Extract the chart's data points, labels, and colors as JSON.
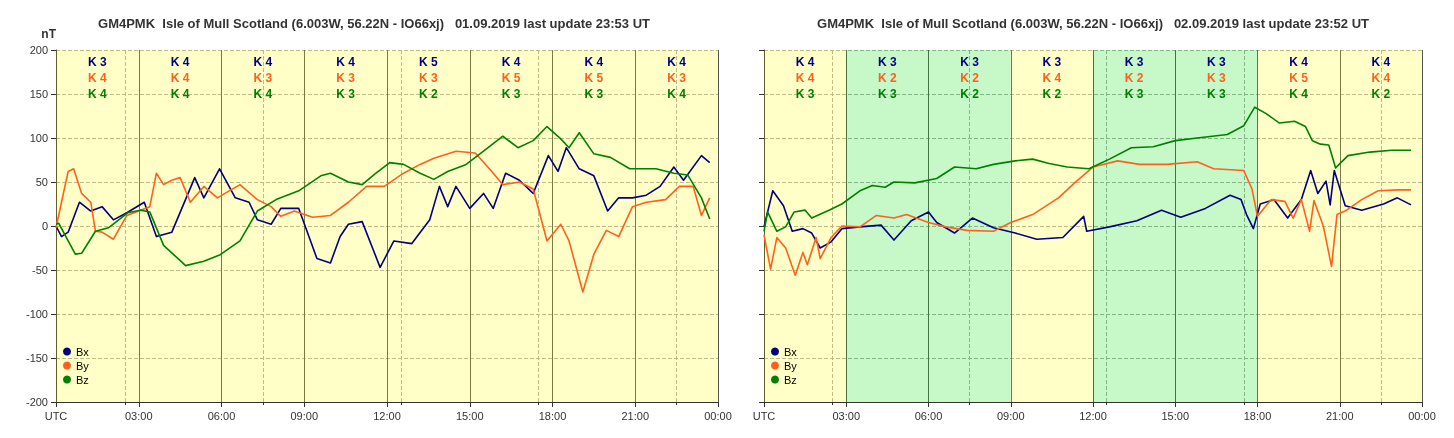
{
  "chart_data": [
    {
      "type": "line",
      "title": "GM4PMK  Isle of Mull Scotland (6.003W, 56.22N - IO66xj)   01.09.2019 last update 23:53 UT",
      "ylabel": "nT",
      "xlim": [
        0,
        24
      ],
      "xticks": [
        {
          "value": 0,
          "label": "UTC"
        },
        {
          "value": 3,
          "label": "03:00"
        },
        {
          "value": 6,
          "label": "06:00"
        },
        {
          "value": 9,
          "label": "09:00"
        },
        {
          "value": 12,
          "label": "12:00"
        },
        {
          "value": 15,
          "label": "15:00"
        },
        {
          "value": 18,
          "label": "18:00"
        },
        {
          "value": 21,
          "label": "21:00"
        },
        {
          "value": 24,
          "label": "00:00"
        }
      ],
      "ylim": [
        -200,
        200
      ],
      "yticks": [
        -200,
        -150,
        -100,
        -50,
        0,
        50,
        100,
        150,
        200
      ],
      "grid": true,
      "legend": "bottom left",
      "series": [
        {
          "name": "Bx",
          "color": "#000080",
          "x": [
            0,
            0.2,
            0.44,
            0.85,
            1.26,
            1.67,
            2.08,
            2.57,
            3.2,
            3.64,
            4.2,
            5.03,
            5.36,
            5.93,
            6.5,
            7.0,
            7.3,
            7.8,
            8.15,
            8.8,
            9.46,
            9.95,
            10.3,
            10.6,
            11.1,
            11.75,
            12.25,
            12.9,
            13.55,
            13.9,
            14.2,
            14.5,
            15.0,
            15.5,
            15.85,
            16.3,
            16.8,
            17.3,
            17.85,
            18.2,
            18.5,
            18.97,
            19.5,
            20.0,
            20.4,
            20.9,
            21.4,
            21.9,
            22.4,
            22.75,
            23.4,
            23.7
          ],
          "values": [
            0,
            -12,
            -7,
            27,
            17,
            22,
            7,
            15,
            27,
            -12,
            -7,
            55,
            32,
            65,
            32,
            27,
            7,
            2,
            20,
            20,
            -37,
            -42,
            -12,
            2,
            5,
            -47,
            -17,
            -20,
            7,
            45,
            22,
            45,
            20,
            37,
            20,
            60,
            52,
            37,
            80,
            62,
            89,
            65,
            57,
            17,
            32,
            32,
            35,
            45,
            67,
            52,
            80,
            72
          ]
        },
        {
          "name": "By",
          "color": "#ff6020",
          "x": [
            0,
            0.2,
            0.44,
            0.64,
            0.93,
            1.26,
            1.43,
            1.67,
            2.08,
            2.57,
            3.07,
            3.4,
            3.64,
            3.9,
            4.2,
            4.5,
            4.87,
            5.36,
            5.85,
            6.67,
            7.3,
            7.8,
            8.15,
            8.64,
            9.3,
            9.95,
            10.6,
            11.26,
            11.9,
            12.6,
            13.2,
            13.7,
            14.5,
            15.2,
            15.8,
            16.2,
            16.8,
            17.3,
            17.8,
            18.3,
            18.6,
            19.1,
            19.5,
            19.95,
            20.4,
            20.9,
            21.4,
            22.1,
            22.6,
            23.1,
            23.4,
            23.7
          ],
          "values": [
            -2,
            27,
            62,
            65,
            37,
            27,
            -6,
            -7,
            -15,
            12,
            18,
            22,
            60,
            47,
            52,
            55,
            27,
            45,
            32,
            47,
            30,
            22,
            11,
            17,
            10,
            12,
            27,
            45,
            45,
            60,
            70,
            77,
            85,
            83,
            62,
            47,
            50,
            42,
            -17,
            2,
            -17,
            -75,
            -32,
            -5,
            -12,
            22,
            27,
            30,
            45,
            45,
            12,
            32
          ]
        },
        {
          "name": "Bz",
          "color": "#008000",
          "x": [
            0,
            0.1,
            0.7,
            0.93,
            1.43,
            1.9,
            2.6,
            3.07,
            3.4,
            3.9,
            4.7,
            5.36,
            5.93,
            6.67,
            7.3,
            7.98,
            8.8,
            9.6,
            9.95,
            10.6,
            11.1,
            11.6,
            12.1,
            12.6,
            13.2,
            13.7,
            14.2,
            14.87,
            15.5,
            16.2,
            16.75,
            17.3,
            17.8,
            18.3,
            18.6,
            18.97,
            19.5,
            20.1,
            20.8,
            21.75,
            22.4,
            22.9,
            23.4,
            23.7
          ],
          "values": [
            2,
            3,
            -32,
            -31,
            -6,
            -2,
            15,
            18,
            16,
            -22,
            -45,
            -40,
            -33,
            -17,
            17,
            30,
            40,
            57,
            60,
            50,
            47,
            60,
            72,
            70,
            60,
            53,
            62,
            70,
            85,
            102,
            89,
            97,
            113,
            99,
            89,
            106,
            82,
            78,
            65,
            65,
            60,
            58,
            32,
            8
          ]
        }
      ],
      "bands": [
        {
          "axis": "x",
          "from": 0,
          "to": 24,
          "color": "#ffff00"
        }
      ],
      "annotations": [
        "K 3",
        "K 4",
        "K 4",
        "K 4",
        "K 5",
        "K 4",
        "K 4",
        "K 4",
        "K 4",
        "K 4",
        "K 3",
        "K 3",
        "K 3",
        "K 5",
        "K 5",
        "K 3",
        "K 4",
        "K 4",
        "K 4",
        "K 3",
        "K 2",
        "K 3",
        "K 3",
        "K 4"
      ]
    },
    {
      "type": "line",
      "title": "GM4PMK  Isle of Mull Scotland (6.003W, 56.22N - IO66xj)   02.09.2019 last update 23:52 UT",
      "xlim": [
        0,
        24
      ],
      "xticks": [
        {
          "value": 0,
          "label": "UTC"
        },
        {
          "value": 3,
          "label": "03:00"
        },
        {
          "value": 6,
          "label": "06:00"
        },
        {
          "value": 9,
          "label": "09:00"
        },
        {
          "value": 12,
          "label": "12:00"
        },
        {
          "value": 15,
          "label": "15:00"
        },
        {
          "value": 18,
          "label": "18:00"
        },
        {
          "value": 21,
          "label": "21:00"
        },
        {
          "value": 24,
          "label": "00:00"
        }
      ],
      "ylim": [
        -200,
        200
      ],
      "yticks": [
        -200,
        -150,
        -100,
        -50,
        0,
        50,
        100,
        150,
        200
      ],
      "tick_labels": "x",
      "grid": true,
      "legend": "bottom left",
      "series": [
        {
          "name": "Bx",
          "color": "#000080",
          "x": [
            0,
            0.32,
            0.71,
            1.03,
            1.42,
            1.74,
            2.05,
            2.45,
            2.84,
            3.5,
            4.27,
            4.74,
            5.37,
            6.0,
            6.3,
            6.95,
            7.6,
            8.37,
            9.16,
            9.95,
            10.9,
            11.66,
            11.77,
            12.6,
            13.6,
            14.5,
            15.2,
            16.1,
            17.0,
            17.4,
            17.6,
            17.85,
            18.1,
            18.6,
            19.1,
            19.6,
            19.94,
            20.2,
            20.5,
            20.65,
            20.8,
            21.2,
            21.8,
            22.6,
            23.1,
            23.6
          ],
          "values": [
            -1,
            40,
            23,
            -6,
            -3,
            -8,
            -25,
            -18,
            -3,
            -1,
            1,
            -16,
            6,
            16,
            4,
            -8,
            9,
            -2,
            -8,
            -15,
            -13,
            11,
            -6,
            -1,
            6,
            18,
            10,
            20,
            35,
            30,
            13,
            -3,
            25,
            30,
            9,
            30,
            63,
            37,
            51,
            24,
            63,
            23,
            18,
            25,
            32,
            24
          ]
        },
        {
          "name": "By",
          "color": "#ff6020",
          "x": [
            0,
            0.24,
            0.47,
            0.79,
            1.14,
            1.42,
            1.58,
            1.9,
            2.05,
            2.45,
            2.84,
            3.5,
            4.1,
            4.74,
            5.2,
            6.0,
            6.63,
            7.4,
            8.37,
            9.0,
            9.8,
            10.74,
            11.4,
            12.0,
            12.9,
            13.7,
            14.7,
            15.8,
            16.4,
            17.5,
            17.8,
            18.0,
            18.5,
            19.0,
            19.3,
            19.6,
            19.9,
            20.06,
            20.4,
            20.7,
            20.9,
            21.25,
            21.8,
            22.4,
            23.1,
            23.6
          ],
          "values": [
            -10,
            -49,
            -13,
            -25,
            -56,
            -30,
            -44,
            -13,
            -37,
            -13,
            0,
            -1,
            12,
            9,
            13,
            4,
            -1,
            -5,
            -6,
            4,
            13,
            32,
            51,
            67,
            74,
            70,
            70,
            73,
            65,
            63,
            42,
            11,
            30,
            28,
            9,
            30,
            -6,
            29,
            0,
            -46,
            13,
            18,
            30,
            40,
            41,
            41
          ]
        },
        {
          "name": "Bz",
          "color": "#008000",
          "x": [
            0,
            0.13,
            0.47,
            0.79,
            1.1,
            1.5,
            1.74,
            2.37,
            2.84,
            3.5,
            3.95,
            4.42,
            4.74,
            5.5,
            6.3,
            6.95,
            7.74,
            8.37,
            9.16,
            9.8,
            10.4,
            11.06,
            11.85,
            12.6,
            13.4,
            14.2,
            15.0,
            15.8,
            16.9,
            17.5,
            17.9,
            18.3,
            18.8,
            19.35,
            19.75,
            20.0,
            20.3,
            20.6,
            20.85,
            21.3,
            22.1,
            22.9,
            23.6
          ],
          "values": [
            -6,
            16,
            -6,
            -1,
            16,
            18,
            9,
            18,
            25,
            40,
            46,
            44,
            50,
            49,
            54,
            67,
            65,
            70,
            74,
            76,
            71,
            67,
            65,
            76,
            89,
            90,
            97,
            100,
            104,
            114,
            135,
            128,
            117,
            119,
            113,
            97,
            93,
            92,
            66,
            80,
            84,
            86,
            86
          ]
        }
      ],
      "bands": [
        {
          "axis": "x",
          "from": 0,
          "to": 3,
          "color": "#ffff00"
        },
        {
          "axis": "x",
          "from": 3,
          "to": 9,
          "color": "#00e000"
        },
        {
          "axis": "x",
          "from": 9,
          "to": 12,
          "color": "#ffff00"
        },
        {
          "axis": "x",
          "from": 12,
          "to": 18,
          "color": "#00e000"
        },
        {
          "axis": "x",
          "from": 18,
          "to": 24,
          "color": "#ffff00"
        }
      ],
      "annotations": [
        "K 4",
        "K 3",
        "K 3",
        "K 3",
        "K 3",
        "K 3",
        "K 4",
        "K 4",
        "K 4",
        "K 2",
        "K 2",
        "K 4",
        "K 2",
        "K 3",
        "K 5",
        "K 4",
        "K 3",
        "K 3",
        "K 2",
        "K 2",
        "K 3",
        "K 3",
        "K 4",
        "K 2"
      ]
    }
  ]
}
